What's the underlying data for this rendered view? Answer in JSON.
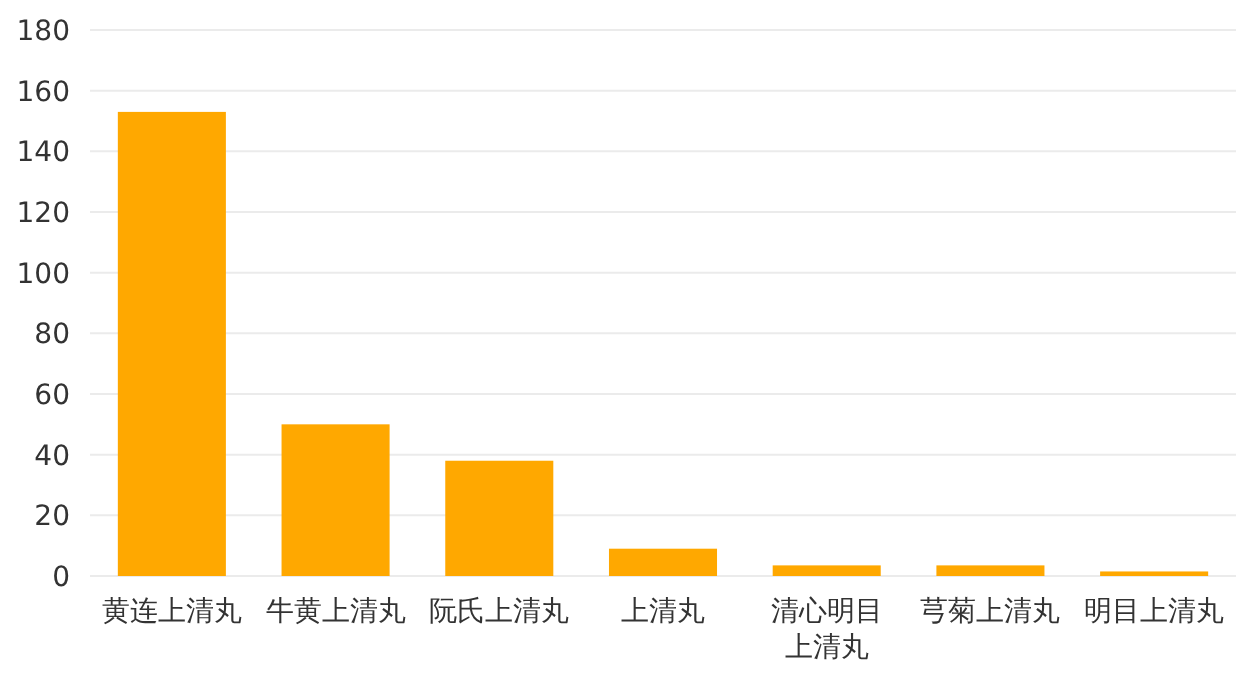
{
  "chart_data": {
    "type": "bar",
    "categories": [
      "黄连上清丸",
      "牛黄上清丸",
      "阮氏上清丸",
      "上清丸",
      "清心明目上清丸",
      "芎菊上清丸",
      "明目上清丸"
    ],
    "values": [
      153,
      50,
      38,
      9,
      3.5,
      3.5,
      1.5
    ],
    "color": "#ffa800",
    "ylim": [
      0,
      180
    ],
    "yticks": [
      0,
      20,
      40,
      60,
      80,
      100,
      120,
      140,
      160,
      180
    ],
    "grid": "y"
  }
}
